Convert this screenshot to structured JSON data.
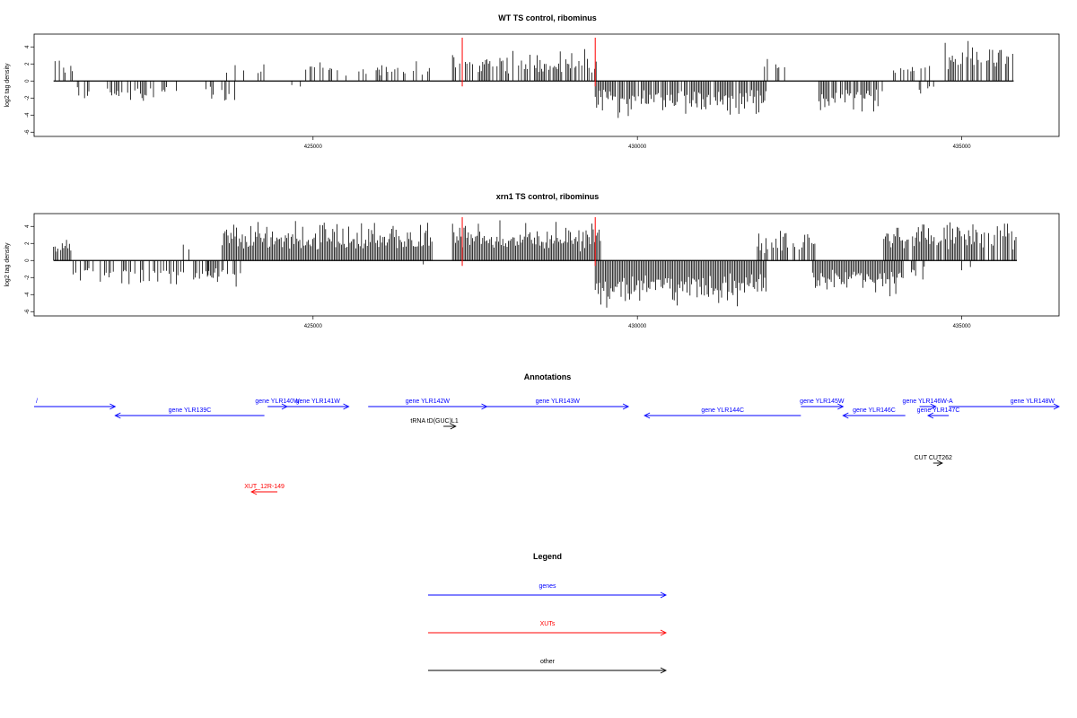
{
  "colors": {
    "genes": "#0000ff",
    "xuts": "#ff0000",
    "other": "#000000",
    "marker": "#ff0000"
  },
  "chart_data": [
    {
      "type": "bar",
      "title": "WT TS control, ribominus",
      "ylabel": "log2 tag density",
      "xlim": [
        420700,
        436500
      ],
      "ylim": [
        -6.5,
        5.5
      ],
      "xticks": [
        425000,
        430000,
        435000
      ],
      "yticks": [
        4,
        2,
        0,
        -2,
        -4,
        -6
      ],
      "markers": [
        427300,
        429350
      ],
      "forward_regions": [
        {
          "start": 421000,
          "end": 421350,
          "density": 0.6,
          "max": 3
        },
        {
          "start": 423600,
          "end": 424250,
          "density": 0.25,
          "max": 3
        },
        {
          "start": 424800,
          "end": 426900,
          "density": 0.35,
          "max": 2.5
        },
        {
          "start": 427150,
          "end": 429400,
          "density": 0.7,
          "max": 4
        },
        {
          "start": 431650,
          "end": 432300,
          "density": 0.15,
          "max": 3.5
        },
        {
          "start": 433950,
          "end": 434550,
          "density": 0.5,
          "max": 3
        },
        {
          "start": 434700,
          "end": 435800,
          "density": 0.7,
          "max": 4.8
        }
      ],
      "reverse_regions": [
        {
          "start": 421300,
          "end": 422900,
          "density": 0.3,
          "max": 3
        },
        {
          "start": 423350,
          "end": 423800,
          "density": 0.3,
          "max": 3
        },
        {
          "start": 424650,
          "end": 424950,
          "density": 0.2,
          "max": 1.5
        },
        {
          "start": 429350,
          "end": 432000,
          "density": 0.9,
          "max": 4.5
        },
        {
          "start": 432800,
          "end": 433800,
          "density": 0.8,
          "max": 4
        },
        {
          "start": 434300,
          "end": 434600,
          "density": 0.4,
          "max": 1.5
        }
      ]
    },
    {
      "type": "bar",
      "title": "xrn1 TS control, ribominus",
      "ylabel": "log2 tag density",
      "xlim": [
        420700,
        436500
      ],
      "ylim": [
        -6.5,
        5.5
      ],
      "xticks": [
        425000,
        430000,
        435000
      ],
      "yticks": [
        4,
        2,
        0,
        -2,
        -4,
        -6
      ],
      "markers": [
        427300,
        429350
      ],
      "forward_regions": [
        {
          "start": 421000,
          "end": 421300,
          "density": 0.6,
          "max": 3
        },
        {
          "start": 423000,
          "end": 423100,
          "density": 0.3,
          "max": 2.5
        },
        {
          "start": 423600,
          "end": 426850,
          "density": 1.0,
          "max": 5
        },
        {
          "start": 427150,
          "end": 429450,
          "density": 1.0,
          "max": 5
        },
        {
          "start": 431850,
          "end": 432750,
          "density": 0.8,
          "max": 4
        },
        {
          "start": 433800,
          "end": 435850,
          "density": 0.9,
          "max": 5
        }
      ],
      "reverse_regions": [
        {
          "start": 421300,
          "end": 423400,
          "density": 0.5,
          "max": 3
        },
        {
          "start": 423350,
          "end": 423900,
          "density": 0.8,
          "max": 3.5
        },
        {
          "start": 426700,
          "end": 426850,
          "density": 0.3,
          "max": 1
        },
        {
          "start": 429350,
          "end": 432000,
          "density": 1.0,
          "max": 6
        },
        {
          "start": 432700,
          "end": 434100,
          "density": 1.0,
          "max": 4.5
        },
        {
          "start": 434200,
          "end": 434500,
          "density": 0.5,
          "max": 2.5
        },
        {
          "start": 435000,
          "end": 435200,
          "density": 0.3,
          "max": 2.5
        }
      ]
    }
  ],
  "annotations": {
    "title": "Annotations",
    "features": [
      {
        "label": "/",
        "start": 420700,
        "end": 421950,
        "strand": "+",
        "class": "genes",
        "row": 0
      },
      {
        "label": "gene YLR139C",
        "start": 421950,
        "end": 424250,
        "strand": "-",
        "class": "genes",
        "row": 1
      },
      {
        "label": "gene YLR140W",
        "start": 424300,
        "end": 424600,
        "strand": "+",
        "class": "genes",
        "row": 0
      },
      {
        "label": "gene YLR141W",
        "start": 424600,
        "end": 425550,
        "strand": "+",
        "class": "genes",
        "row": 0
      },
      {
        "label": "gene YLR142W",
        "start": 425850,
        "end": 427680,
        "strand": "+",
        "class": "genes",
        "row": 0
      },
      {
        "label": "tRNA tD(GUC)L1",
        "start": 427010,
        "end": 427200,
        "strand": "+",
        "class": "other",
        "row": 2
      },
      {
        "label": "gene YLR143W",
        "start": 427680,
        "end": 429860,
        "strand": "+",
        "class": "genes",
        "row": 0
      },
      {
        "label": "gene YLR144C",
        "start": 430110,
        "end": 432520,
        "strand": "-",
        "class": "genes",
        "row": 1
      },
      {
        "label": "gene YLR145W",
        "start": 432520,
        "end": 433170,
        "strand": "+",
        "class": "genes",
        "row": 0
      },
      {
        "label": "gene YLR146C",
        "start": 433170,
        "end": 434130,
        "strand": "-",
        "class": "genes",
        "row": 1
      },
      {
        "label": "gene YLR146W-A",
        "start": 434350,
        "end": 434600,
        "strand": "+",
        "class": "genes",
        "row": 0
      },
      {
        "label": "gene YLR147C",
        "start": 434480,
        "end": 434800,
        "strand": "-",
        "class": "genes",
        "row": 1
      },
      {
        "label": "gene YLR148W",
        "start": 434800,
        "end": 436500,
        "strand": "+",
        "class": "genes",
        "row": 0
      },
      {
        "label": "CUT CUT262",
        "start": 434560,
        "end": 434700,
        "strand": "+",
        "class": "other",
        "row": 3
      },
      {
        "label": "XUT_12R-149",
        "start": 424050,
        "end": 424450,
        "strand": "-",
        "class": "xuts",
        "row": 4
      }
    ]
  },
  "legend": {
    "title": "Legend",
    "entries": [
      {
        "label": "genes",
        "class": "genes"
      },
      {
        "label": "XUTs",
        "class": "xuts"
      },
      {
        "label": "other",
        "class": "other"
      }
    ]
  }
}
